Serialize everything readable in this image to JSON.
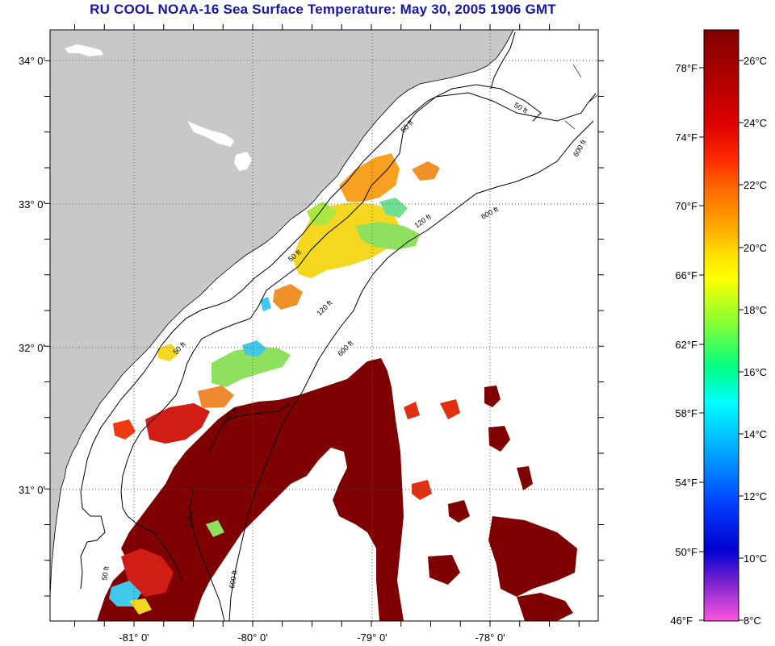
{
  "title": "RU COOL  NOAA-16  Sea Surface Temperature:  May 30, 2005 1906 GMT",
  "map": {
    "lat_labels": [
      "34° 0'",
      "33° 0'",
      "32° 0'",
      "31° 0'"
    ],
    "lon_labels": [
      "-81° 0'",
      "-80° 0'",
      "-79° 0'",
      "-78° 0'"
    ],
    "contour_labels": [
      "50 ft",
      "120 ft",
      "600 ft",
      "50 ft",
      "120 ft",
      "600 ft",
      "50 ft",
      "120 ft",
      "600 ft",
      "50 ft",
      "120 ft",
      "600 ft",
      "50 ft"
    ],
    "colors": {
      "land": "#c8c8c8",
      "cloud": "#ffffff",
      "warm": "#7f0000",
      "red": "#d21d16"
    }
  },
  "colorbar": {
    "fahrenheit_labels": [
      "78°F",
      "74°F",
      "70°F",
      "66°F",
      "62°F",
      "58°F",
      "54°F",
      "50°F",
      "46°F"
    ],
    "celsius_labels": [
      "26°C",
      "24°C",
      "22°C",
      "20°C",
      "18°C",
      "16°C",
      "14°C",
      "12°C",
      "10°C",
      "8°C"
    ],
    "gradient": [
      "#800000",
      "#cc0000",
      "#ff2a00",
      "#ff8000",
      "#ffd000",
      "#ffff00",
      "#80ff40",
      "#00ffaa",
      "#00ffff",
      "#00a0ff",
      "#0040ff",
      "#0000cc",
      "#6a20d0",
      "#c040e0",
      "#ff55dd"
    ]
  }
}
